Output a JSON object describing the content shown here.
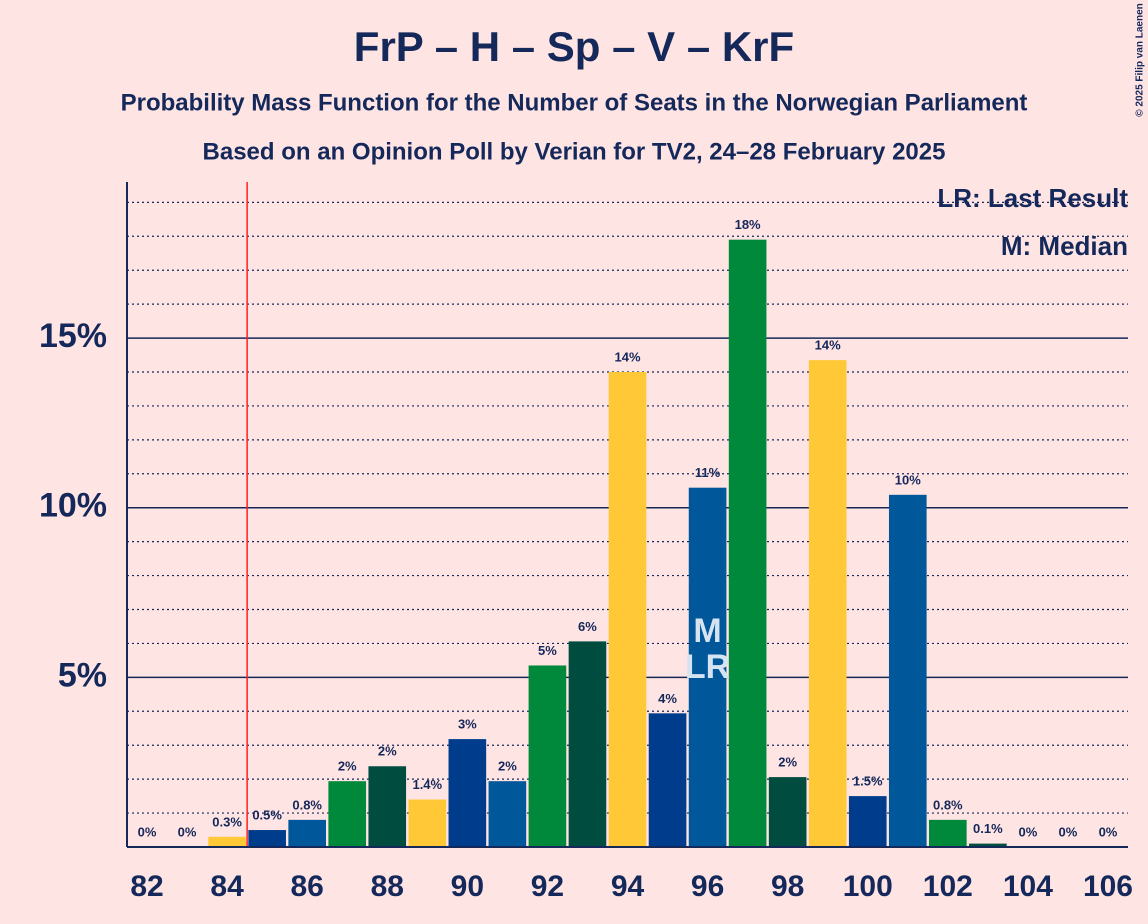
{
  "chart_data": {
    "type": "bar",
    "title": "FrP – H – Sp – V – KrF",
    "subtitle": "Probability Mass Function for the Number of Seats in the Norwegian Parliament",
    "subtitle2": "Based on an Opinion Poll by Verian for TV2, 24–28 February 2025",
    "copyright": "© 2025 Filip van Laenen",
    "x": [
      82,
      83,
      84,
      85,
      86,
      87,
      88,
      89,
      90,
      91,
      92,
      93,
      94,
      95,
      96,
      97,
      98,
      99,
      100,
      101,
      102,
      103,
      104,
      105,
      106
    ],
    "values": [
      0,
      0,
      0.3,
      0.5,
      0.8,
      1.94,
      2.38,
      1.4,
      3.18,
      1.94,
      5.35,
      6.06,
      14.0,
      3.94,
      10.59,
      17.9,
      2.06,
      14.35,
      1.5,
      10.38,
      0.8,
      0.1,
      0,
      0,
      0
    ],
    "value_labels": [
      "0%",
      "0%",
      "0.3%",
      "0.5%",
      "0.8%",
      "2%",
      "2%",
      "1.4%",
      "3%",
      "2%",
      "5%",
      "6%",
      "14%",
      "4%",
      "11%",
      "18%",
      "2%",
      "14%",
      "1.5%",
      "10%",
      "0.8%",
      "0.1%",
      "0%",
      "0%",
      "0%"
    ],
    "colors": [
      "#FFC836",
      "#003C8C",
      "#FFC836",
      "#003C8C",
      "#00579A",
      "#00883B",
      "#004D40",
      "#FFC836",
      "#003C8C",
      "#00579A",
      "#00883B",
      "#004D40",
      "#FFC836",
      "#003C8C",
      "#00579A",
      "#00883B",
      "#004D40",
      "#FFC836",
      "#003C8C",
      "#00579A",
      "#00883B",
      "#004D40",
      "#FFC836",
      "#003C8C",
      "#00579A"
    ],
    "xlim": [
      81.5,
      106.5
    ],
    "xticks": [
      82,
      84,
      86,
      88,
      90,
      92,
      94,
      96,
      98,
      100,
      102,
      104,
      106
    ],
    "ylim": [
      0,
      19.6
    ],
    "yticks": [
      {
        "value": 5,
        "label": "5%"
      },
      {
        "value": 10,
        "label": "10%"
      },
      {
        "value": 15,
        "label": "15%"
      }
    ],
    "minor_yticks": [
      1,
      2,
      3,
      4,
      6,
      7,
      8,
      9,
      11,
      12,
      13,
      14,
      16,
      17,
      18,
      19
    ],
    "majority": 85,
    "median": 96,
    "median_label": "M",
    "last_result": 96,
    "last_result_label": "LR",
    "legend": [
      "LR: Last Result",
      "M: Median"
    ]
  }
}
